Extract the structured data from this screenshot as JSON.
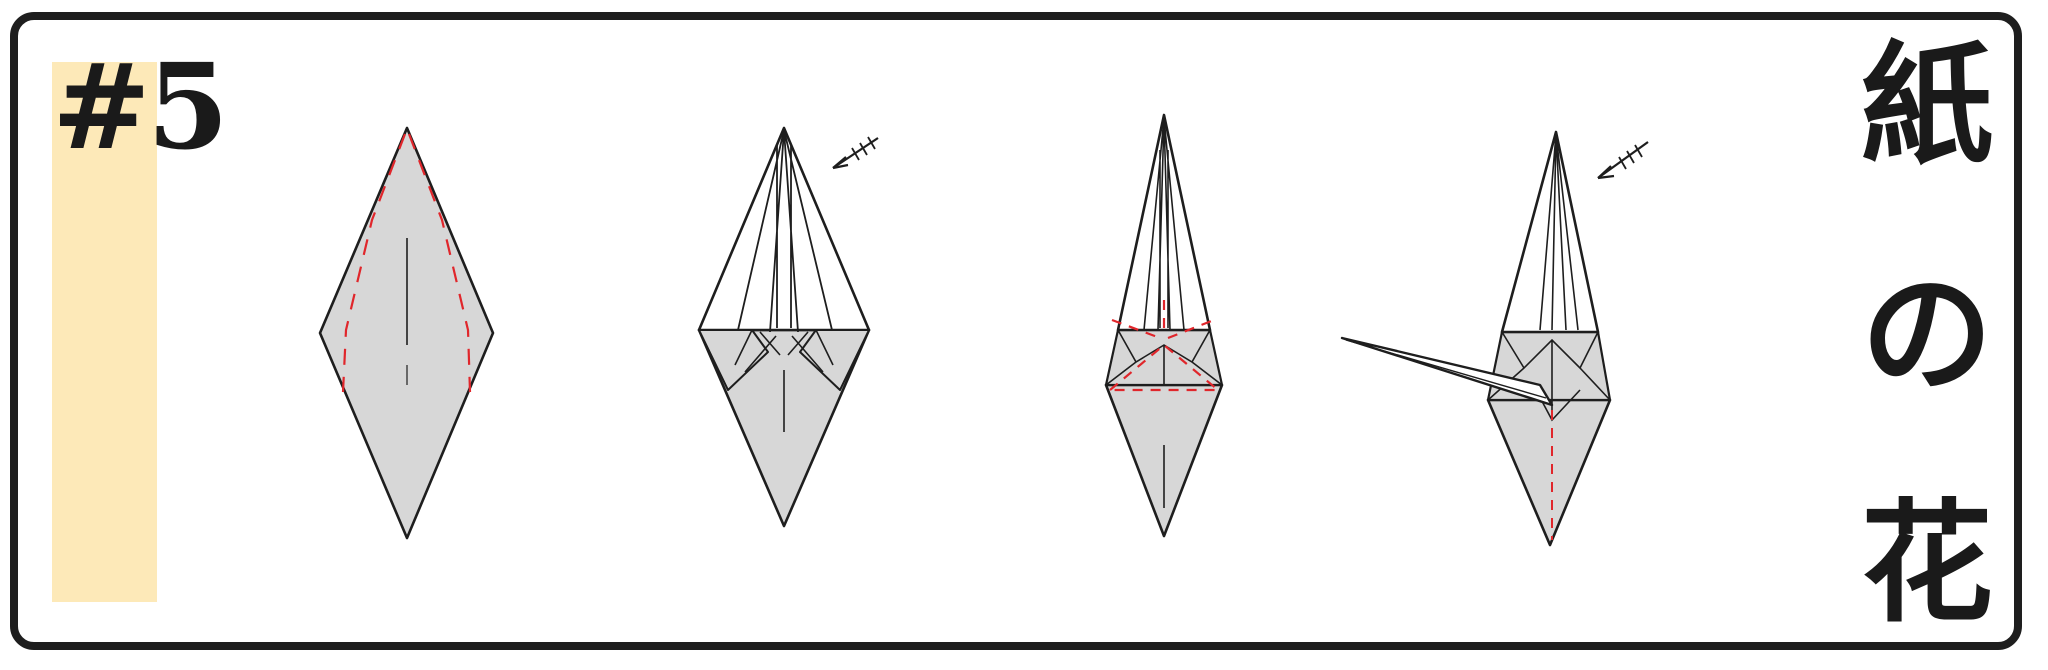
{
  "step": {
    "number": "#5"
  },
  "title": {
    "chars": [
      "紙",
      "の",
      "花"
    ]
  },
  "colors": {
    "paper_fill": "#d7d7d7",
    "outline": "#1e1e1e",
    "fold_line": "#e0262b",
    "highlight": "#fde9b8",
    "frame": "#1e1e1e"
  },
  "diagram": {
    "steps": [
      {
        "name": "kite-with-fold-guides",
        "has_arrow": false
      },
      {
        "name": "folded-narrow-top",
        "has_arrow": true
      },
      {
        "name": "inside-reverse-fold-guide",
        "has_arrow": false
      },
      {
        "name": "stem-pulled-out",
        "has_arrow": true
      }
    ]
  }
}
